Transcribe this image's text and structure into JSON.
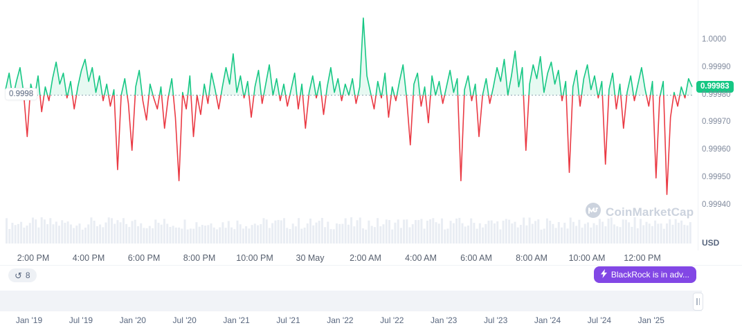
{
  "chart_data": {
    "type": "line",
    "baseline": 0.9998,
    "baseline_label": "0.9998",
    "current_price": 0.99983,
    "current_price_label": "0.99983",
    "ylim": [
      0.99936,
      1.0001
    ],
    "y_axis": {
      "labels": [
        "1.0000",
        "0.99990",
        "0.99980",
        "0.99970",
        "0.99960",
        "0.99950",
        "0.99940"
      ],
      "values": [
        1.0,
        0.9999,
        0.9998,
        0.9997,
        0.9996,
        0.9995,
        0.9994
      ],
      "currency": "USD"
    },
    "x_axis_labels": [
      "2:00 PM",
      "4:00 PM",
      "6:00 PM",
      "8:00 PM",
      "10:00 PM",
      "30 May",
      "2:00 AM",
      "4:00 AM",
      "6:00 AM",
      "8:00 AM",
      "10:00 AM",
      "12:00 PM"
    ],
    "values": [
      0.99982,
      0.99988,
      0.99979,
      0.99985,
      0.9999,
      0.99981,
      0.99965,
      0.99984,
      0.99979,
      0.99987,
      0.99974,
      0.99983,
      0.99978,
      0.99986,
      0.99992,
      0.99984,
      0.99988,
      0.99979,
      0.99985,
      0.99975,
      0.99983,
      0.99989,
      0.99993,
      0.99985,
      0.9999,
      0.99981,
      0.99987,
      0.99978,
      0.99984,
      0.99976,
      0.99982,
      0.99953,
      0.9998,
      0.99986,
      0.99977,
      0.9996,
      0.99983,
      0.99989,
      0.99978,
      0.99971,
      0.99984,
      0.99979,
      0.99975,
      0.99983,
      0.99968,
      0.99979,
      0.99986,
      0.99972,
      0.99949,
      0.99981,
      0.99975,
      0.99987,
      0.99965,
      0.9998,
      0.99973,
      0.99984,
      0.99977,
      0.99988,
      0.99982,
      0.99975,
      0.99983,
      0.9999,
      0.99984,
      0.99995,
      0.99981,
      0.99987,
      0.99979,
      0.99985,
      0.99972,
      0.99983,
      0.99989,
      0.99977,
      0.99984,
      0.99991,
      0.9998,
      0.99986,
      0.99978,
      0.99984,
      0.99976,
      0.99982,
      0.99988,
      0.99975,
      0.99984,
      0.99968,
      0.99981,
      0.99987,
      0.99979,
      0.99985,
      0.99973,
      0.99983,
      0.9999,
      0.99981,
      0.99986,
      0.99978,
      0.99984,
      0.9998,
      0.99986,
      0.99977,
      0.99983,
      1.00008,
      0.99987,
      0.99981,
      0.99975,
      0.99985,
      0.99979,
      0.99988,
      0.99972,
      0.99983,
      0.99978,
      0.99985,
      0.99991,
      0.99979,
      0.99962,
      0.99984,
      0.99988,
      0.99976,
      0.99983,
      0.9997,
      0.99987,
      0.9998,
      0.99985,
      0.99977,
      0.99983,
      0.99989,
      0.99981,
      0.99986,
      0.99949,
      0.99982,
      0.99987,
      0.99978,
      0.99984,
      0.99965,
      0.9998,
      0.99986,
      0.99977,
      0.99983,
      0.9999,
      0.99985,
      0.99993,
      0.9998,
      0.99987,
      0.99996,
      0.99983,
      0.9999,
      0.9996,
      0.99984,
      0.99991,
      0.99986,
      0.99994,
      0.99981,
      0.99988,
      0.99992,
      0.99984,
      0.99989,
      0.99978,
      0.99985,
      0.99952,
      0.99983,
      0.99989,
      0.99976,
      0.99986,
      0.99991,
      0.99982,
      0.99987,
      0.99979,
      0.99985,
      0.99955,
      0.99982,
      0.99988,
      0.99975,
      0.99984,
      0.99968,
      0.99981,
      0.99987,
      0.99978,
      0.99984,
      0.9999,
      0.99982,
      0.99976,
      0.99985,
      0.9995,
      0.99979,
      0.99985,
      0.99944,
      0.99972,
      0.99981,
      0.99976,
      0.99983,
      0.99979,
      0.99986,
      0.99983
    ],
    "colors": {
      "up": "#16c784",
      "down": "#ea3943",
      "fill": "rgba(22,199,132,0.10)",
      "baseline_line": "#8aa0ae"
    },
    "volume_bars": {
      "count": 235,
      "color": "#e9edf3"
    }
  },
  "controls": {
    "history_count": "8",
    "ad_button_label": "BlackRock is in adv...",
    "ad_button_color": "#8247e5"
  },
  "watermark": {
    "text": "CoinMarketCap"
  },
  "timeline": {
    "labels": [
      "Jan '19",
      "Jul '19",
      "Jan '20",
      "Jul '20",
      "Jan '21",
      "Jul '21",
      "Jan '22",
      "Jul '22",
      "Jan '23",
      "Jul '23",
      "Jan '24",
      "Jul '24",
      "Jan '25"
    ]
  }
}
